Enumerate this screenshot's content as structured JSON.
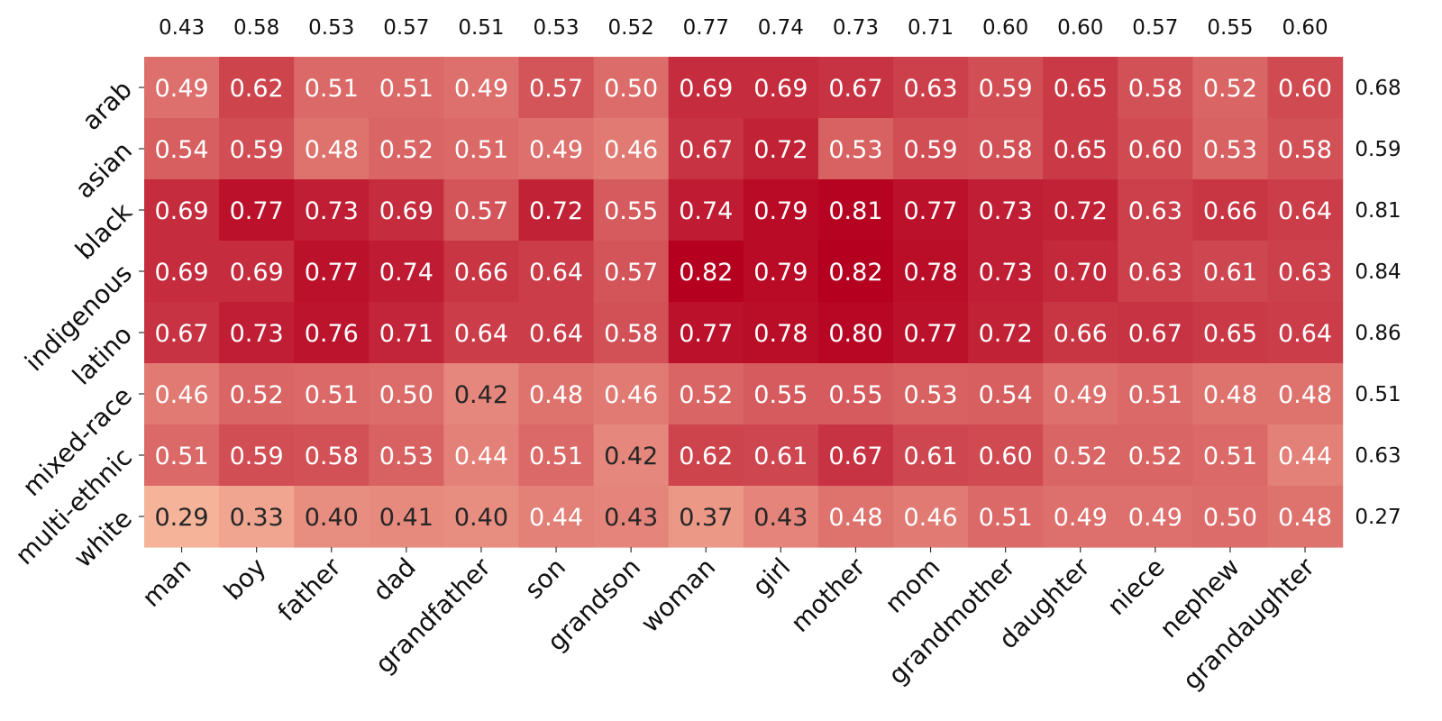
{
  "chart_data": {
    "type": "heatmap",
    "title": "",
    "xlabel": "",
    "ylabel": "",
    "rows": [
      "arab",
      "asian",
      "black",
      "indigenous",
      "latino",
      "mixed-race",
      "multi-ethnic",
      "white"
    ],
    "columns": [
      "man",
      "boy",
      "father",
      "dad",
      "grandfather",
      "son",
      "grandson",
      "woman",
      "girl",
      "mother",
      "mom",
      "grandmother",
      "daughter",
      "niece",
      "nephew",
      "grandaughter"
    ],
    "values": [
      [
        0.49,
        0.62,
        0.51,
        0.51,
        0.49,
        0.57,
        0.5,
        0.69,
        0.69,
        0.67,
        0.63,
        0.59,
        0.65,
        0.58,
        0.52,
        0.6
      ],
      [
        0.54,
        0.59,
        0.48,
        0.52,
        0.51,
        0.49,
        0.46,
        0.67,
        0.72,
        0.53,
        0.59,
        0.58,
        0.65,
        0.6,
        0.53,
        0.58
      ],
      [
        0.69,
        0.77,
        0.73,
        0.69,
        0.57,
        0.72,
        0.55,
        0.74,
        0.79,
        0.81,
        0.77,
        0.73,
        0.72,
        0.63,
        0.66,
        0.64
      ],
      [
        0.69,
        0.69,
        0.77,
        0.74,
        0.66,
        0.64,
        0.57,
        0.82,
        0.79,
        0.82,
        0.78,
        0.73,
        0.7,
        0.63,
        0.61,
        0.63
      ],
      [
        0.67,
        0.73,
        0.76,
        0.71,
        0.64,
        0.64,
        0.58,
        0.77,
        0.78,
        0.8,
        0.77,
        0.72,
        0.66,
        0.67,
        0.65,
        0.64
      ],
      [
        0.46,
        0.52,
        0.51,
        0.5,
        0.42,
        0.48,
        0.46,
        0.52,
        0.55,
        0.55,
        0.53,
        0.54,
        0.49,
        0.51,
        0.48,
        0.48
      ],
      [
        0.51,
        0.59,
        0.58,
        0.53,
        0.44,
        0.51,
        0.42,
        0.62,
        0.61,
        0.67,
        0.61,
        0.6,
        0.52,
        0.52,
        0.51,
        0.44
      ],
      [
        0.29,
        0.33,
        0.4,
        0.41,
        0.4,
        0.44,
        0.43,
        0.37,
        0.43,
        0.48,
        0.46,
        0.51,
        0.49,
        0.49,
        0.5,
        0.48
      ]
    ],
    "column_totals": [
      0.43,
      0.58,
      0.53,
      0.57,
      0.51,
      0.53,
      0.52,
      0.77,
      0.74,
      0.73,
      0.71,
      0.6,
      0.6,
      0.57,
      0.55,
      0.6
    ],
    "row_totals": [
      0.68,
      0.59,
      0.81,
      0.84,
      0.86,
      0.51,
      0.63,
      0.27
    ],
    "color_range": [
      0.29,
      0.82
    ],
    "colormap": [
      "#f5b39a",
      "#b5001f"
    ],
    "text_colors": {
      "light": "#ffffff",
      "dark": "#262626"
    },
    "colorbar": false,
    "grid": false
  }
}
